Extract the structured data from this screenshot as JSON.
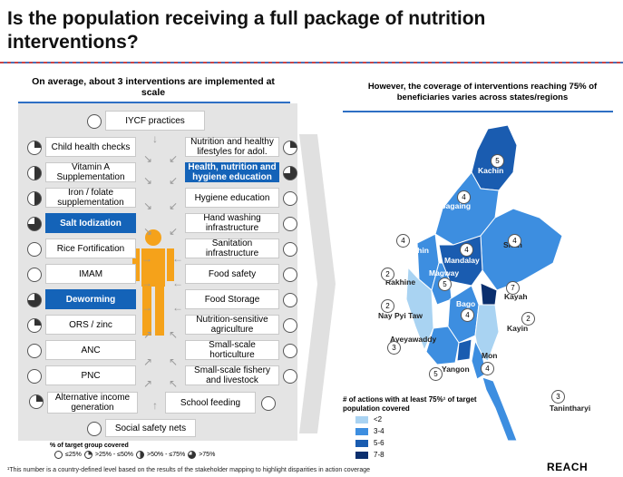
{
  "title": "Is the population receiving a full package of nutrition interventions?",
  "left_heading": "On average, about 3 interventions are implemented at scale",
  "right_heading": "However, the coverage of interventions reaching 75% of beneficiaries varies across states/regions",
  "center": "IYCF practices",
  "left_items": [
    {
      "label": "Child health checks",
      "coverage": "1/4",
      "highlight": false
    },
    {
      "label": "Vitamin A Supplementation",
      "coverage": "2/4",
      "highlight": false
    },
    {
      "label": "Iron / folate supplementation",
      "coverage": "2/4",
      "highlight": false
    },
    {
      "label": "Salt Iodization",
      "coverage": "3/4",
      "highlight": true
    },
    {
      "label": "Rice Fortification",
      "coverage": "0",
      "highlight": false
    },
    {
      "label": "IMAM",
      "coverage": "0",
      "highlight": false
    },
    {
      "label": "Deworming",
      "coverage": "3/4",
      "highlight": true
    },
    {
      "label": "ORS / zinc",
      "coverage": "1/4",
      "highlight": false
    },
    {
      "label": "ANC",
      "coverage": "0",
      "highlight": false
    },
    {
      "label": "PNC",
      "coverage": "0",
      "highlight": false
    }
  ],
  "right_items": [
    {
      "label": "Nutrition and healthy lifestyles for adol.",
      "coverage": "1/4",
      "highlight": false
    },
    {
      "label": "Health, nutrition and hygiene education",
      "coverage": "3/4",
      "highlight": true
    },
    {
      "label": "Hygiene education",
      "coverage": "0",
      "highlight": false
    },
    {
      "label": "Hand washing infrastructure",
      "coverage": "0",
      "highlight": false
    },
    {
      "label": "Sanitation infrastructure",
      "coverage": "0",
      "highlight": false
    },
    {
      "label": "Food safety",
      "coverage": "0",
      "highlight": false
    },
    {
      "label": "Food Storage",
      "coverage": "0",
      "highlight": false
    },
    {
      "label": "Nutrition-sensitive agriculture",
      "coverage": "0",
      "highlight": false
    },
    {
      "label": "Small-scale horticulture",
      "coverage": "0",
      "highlight": false
    },
    {
      "label": "Small-scale fishery and livestock",
      "coverage": "0",
      "highlight": false
    }
  ],
  "bottom_left": {
    "label": "Alternative income generation",
    "coverage": "1/4"
  },
  "bottom_right": {
    "label": "School feeding",
    "coverage": "0"
  },
  "bottom_center": {
    "label": "Social safety nets",
    "coverage": "0"
  },
  "coverage_legend": {
    "title": "% of target group covered",
    "items": [
      "≤25%",
      ">25% - ≤50%",
      ">50% - ≤75%",
      ">75%"
    ]
  },
  "map": {
    "regions": [
      {
        "name": "Kachin",
        "value": "5"
      },
      {
        "name": "Sagaing",
        "value": "4"
      },
      {
        "name": "Shan",
        "value": "4"
      },
      {
        "name": "Chin",
        "value": "4"
      },
      {
        "name": "Mandalay",
        "value": "4"
      },
      {
        "name": "Magway",
        "value": "5"
      },
      {
        "name": "Rakhine",
        "value": "2"
      },
      {
        "name": "Kayah",
        "value": "7"
      },
      {
        "name": "Nay Pyi Taw",
        "value": "2"
      },
      {
        "name": "Bago",
        "value": "4"
      },
      {
        "name": "Kayin",
        "value": "2"
      },
      {
        "name": "Ayeyawaddy",
        "value": "3"
      },
      {
        "name": "Mon",
        "value": "4"
      },
      {
        "name": "Yangon",
        "value": "5"
      },
      {
        "name": "Tanintharyi",
        "value": "3"
      }
    ],
    "legend_title": "# of actions with at least 75%¹ of target population covered",
    "legend": [
      {
        "label": "<2",
        "color": "#a9d3f2"
      },
      {
        "label": "3-4",
        "color": "#3d8ee0"
      },
      {
        "label": "5-6",
        "color": "#1a5cb0"
      },
      {
        "label": "7-8",
        "color": "#0b2f6e"
      }
    ]
  },
  "footnote": "¹This number is a country-defined level based on the results of the stakeholder mapping to highlight disparities in action coverage",
  "brand": "REACH",
  "colors": {
    "highlight": "#1463b8",
    "panel": "#e4e4e4",
    "person": "#f5a21a"
  }
}
